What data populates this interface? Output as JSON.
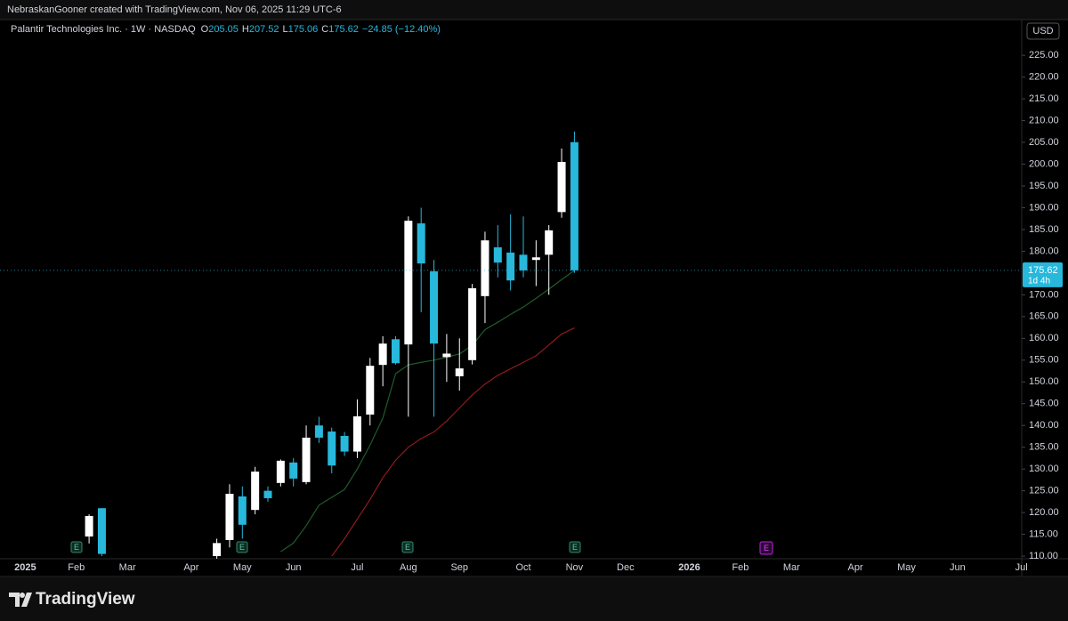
{
  "header": {
    "caption": "NebraskanGooner created with TradingView.com, Nov 06, 2025 11:29 UTC-6"
  },
  "footer": {
    "brand": "TradingView"
  },
  "chart_data": {
    "type": "candlestick",
    "symbol": "Palantir Technologies Inc. · 1W · NASDAQ",
    "legend": [
      {
        "key": "O",
        "value": "205.05"
      },
      {
        "key": "H",
        "value": "207.52"
      },
      {
        "key": "L",
        "value": "175.06"
      },
      {
        "key": "C",
        "value": "175.62"
      }
    ],
    "change": "−24.85 (−12.40%)",
    "currency": "USD",
    "events_label": "E",
    "categories": [
      null,
      "2025",
      null,
      null,
      null,
      "Feb",
      null,
      null,
      null,
      "Mar",
      null,
      null,
      null,
      null,
      "Apr",
      null,
      null,
      null,
      "May",
      null,
      null,
      null,
      "Jun",
      null,
      null,
      null,
      null,
      "Jul",
      null,
      null,
      null,
      "Aug",
      null,
      null,
      null,
      "Sep",
      null,
      null,
      null,
      null,
      "Oct",
      null,
      null,
      null,
      "Nov",
      null,
      null,
      null,
      "Dec",
      null,
      null,
      null,
      null,
      "2026",
      null,
      null,
      null,
      "Feb",
      null,
      null,
      null,
      "Mar",
      null,
      null,
      null,
      null,
      "Apr",
      null,
      null,
      null,
      "May",
      null,
      null,
      null,
      "Jun",
      null,
      null,
      null,
      null,
      "Jul"
    ],
    "open": [
      null,
      null,
      null,
      null,
      null,
      null,
      114.5,
      121,
      null,
      null,
      null,
      null,
      null,
      null,
      null,
      null,
      110,
      113.7,
      123.7,
      120.6,
      125,
      126.8,
      131.5,
      127,
      140,
      138.6,
      137.6,
      134,
      142.5,
      153.9,
      159.8,
      158.6,
      186.4,
      175.4,
      155.7,
      151.3,
      155,
      169.7,
      180.9,
      179.7,
      179.2,
      178,
      179.2,
      189,
      205.05,
      null,
      null,
      null,
      null,
      null,
      null,
      null,
      null,
      null,
      null,
      null,
      null,
      null,
      null,
      null,
      null,
      null,
      null,
      null,
      null,
      null,
      null,
      null,
      null,
      null,
      null,
      null,
      null,
      null,
      null,
      null,
      null,
      null,
      null,
      null
    ],
    "high": [
      null,
      null,
      null,
      null,
      null,
      null,
      119.6,
      121,
      null,
      null,
      null,
      null,
      null,
      null,
      null,
      null,
      114,
      126.5,
      126,
      130.5,
      126,
      132.2,
      132.5,
      140,
      142,
      139.5,
      138.5,
      146,
      155.5,
      160.5,
      160.5,
      188,
      190,
      178,
      161,
      160,
      172.5,
      184.5,
      186,
      188.5,
      188,
      182.5,
      186,
      203.6,
      207.52,
      null,
      null,
      null,
      null,
      null,
      null,
      null,
      null,
      null,
      null,
      null,
      null,
      null,
      null,
      null,
      null,
      null,
      null,
      null,
      null,
      null,
      null,
      null,
      null,
      null,
      null,
      null,
      null,
      null,
      null,
      null,
      null,
      null,
      null,
      null
    ],
    "low": [
      null,
      null,
      null,
      null,
      null,
      null,
      112.9,
      110,
      null,
      null,
      null,
      null,
      null,
      null,
      null,
      null,
      109,
      112,
      114,
      119.6,
      122.5,
      126,
      126,
      126.5,
      136,
      129,
      133,
      132.5,
      140,
      149,
      154,
      142,
      166,
      142,
      150,
      148,
      154,
      163.5,
      174,
      171,
      174,
      172,
      170,
      187.7,
      175.06,
      null,
      null,
      null,
      null,
      null,
      null,
      null,
      null,
      null,
      null,
      null,
      null,
      null,
      null,
      null,
      null,
      null,
      null,
      null,
      null,
      null,
      null,
      null,
      null,
      null,
      null,
      null,
      null,
      null,
      null,
      null,
      null,
      null,
      null,
      null
    ],
    "close": [
      null,
      null,
      null,
      null,
      null,
      null,
      119.2,
      110.5,
      null,
      null,
      null,
      null,
      null,
      null,
      null,
      null,
      113,
      124.3,
      117.2,
      129.4,
      123.3,
      131.9,
      127.8,
      137.2,
      137.2,
      130.8,
      134,
      142.1,
      153.7,
      158.8,
      154.3,
      187,
      177.2,
      158.8,
      156.5,
      153.1,
      171.5,
      182.5,
      177.4,
      173.3,
      175.6,
      178.6,
      184.8,
      200.5,
      175.62,
      null,
      null,
      null,
      null,
      null,
      null,
      null,
      null,
      null,
      null,
      null,
      null,
      null,
      null,
      null,
      null,
      null,
      null,
      null,
      null,
      null,
      null,
      null,
      null,
      null,
      null,
      null,
      null,
      null,
      null,
      null,
      null,
      null,
      null,
      null
    ],
    "up_color": "#ffffff",
    "down_color": "#27b8dc",
    "lines": [
      {
        "color": "#1e5c2c",
        "values": [
          null,
          null,
          null,
          null,
          null,
          null,
          null,
          null,
          null,
          null,
          null,
          null,
          null,
          null,
          null,
          null,
          null,
          null,
          null,
          null,
          null,
          111,
          113,
          117,
          121.7,
          123.5,
          125.3,
          130,
          135.5,
          141.7,
          151.9,
          153.9,
          154.5,
          155,
          155.7,
          156.4,
          158.4,
          162,
          163.7,
          165.5,
          167.2,
          169.2,
          171.3,
          173.5,
          175.6,
          null,
          null,
          null,
          null,
          null,
          null,
          null,
          null,
          null,
          null,
          null,
          null,
          null,
          null,
          null,
          null,
          null,
          null,
          null,
          null,
          null,
          null,
          null,
          null,
          null,
          null,
          null,
          null,
          null,
          null,
          null,
          null,
          null,
          null,
          null
        ]
      },
      {
        "color": "#8e1b1b",
        "values": [
          null,
          null,
          null,
          null,
          null,
          null,
          null,
          null,
          null,
          null,
          null,
          null,
          null,
          null,
          null,
          null,
          null,
          null,
          null,
          null,
          null,
          null,
          null,
          null,
          null,
          110,
          114,
          118.5,
          123,
          128,
          132,
          135,
          137,
          138.5,
          141,
          144,
          147,
          149.5,
          151.5,
          153,
          154.5,
          156,
          158.5,
          161,
          162.4,
          null,
          null,
          null,
          null,
          null,
          null,
          null,
          null,
          null,
          null,
          null,
          null,
          null,
          null,
          null,
          null,
          null,
          null,
          null,
          null,
          null,
          null,
          null,
          null,
          null,
          null,
          null,
          null,
          null,
          null,
          null,
          null,
          null,
          null,
          null
        ]
      }
    ],
    "last_price": {
      "value": 175.62,
      "label": "175.62",
      "countdown": "1d 4h"
    },
    "ylim": [
      109.4,
      233.2
    ],
    "yticks": [
      {
        "value": 110,
        "label": "110.00"
      },
      {
        "value": 115,
        "label": "115.00"
      },
      {
        "value": 120,
        "label": "120.00"
      },
      {
        "value": 125,
        "label": "125.00"
      },
      {
        "value": 130,
        "label": "130.00"
      },
      {
        "value": 135,
        "label": "135.00"
      },
      {
        "value": 140,
        "label": "140.00"
      },
      {
        "value": 145,
        "label": "145.00"
      },
      {
        "value": 150,
        "label": "150.00"
      },
      {
        "value": 155,
        "label": "155.00"
      },
      {
        "value": 160,
        "label": "160.00"
      },
      {
        "value": 165,
        "label": "165.00"
      },
      {
        "value": 170,
        "label": "170.00"
      },
      {
        "value": 180,
        "label": "180.00"
      },
      {
        "value": 185,
        "label": "185.00"
      },
      {
        "value": 190,
        "label": "190.00"
      },
      {
        "value": 195,
        "label": "195.00"
      },
      {
        "value": 200,
        "label": "200.00"
      },
      {
        "value": 205,
        "label": "205.00"
      },
      {
        "value": 210,
        "label": "210.00"
      },
      {
        "value": 215,
        "label": "215.00"
      },
      {
        "value": 220,
        "label": "220.00"
      },
      {
        "value": 225,
        "label": "225.00"
      }
    ],
    "grid": false
  }
}
